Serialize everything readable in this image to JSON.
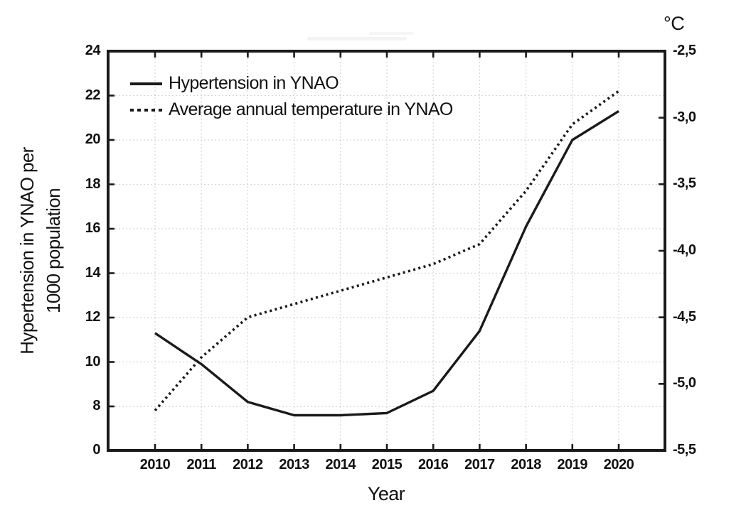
{
  "chart_data": {
    "type": "line",
    "x": [
      2010,
      2011,
      2012,
      2013,
      2014,
      2015,
      2016,
      2017,
      2018,
      2019,
      2020
    ],
    "x_tick_labels": [
      "2010",
      "2011",
      "2012",
      "2013",
      "2014",
      "2015",
      "2016",
      "2017",
      "2018",
      "2019",
      "2020"
    ],
    "x_label": "Year",
    "series": [
      {
        "name": "Hypertension in YNAO",
        "axis": "left",
        "line_style": "solid",
        "values": [
          11.3,
          9.9,
          8.2,
          7.6,
          7.6,
          7.7,
          8.7,
          11.4,
          16.1,
          20.0,
          21.3
        ]
      },
      {
        "name": "Average annual temperature in YNAO",
        "axis": "right",
        "line_style": "dotted",
        "values": [
          -5.2,
          -4.8,
          -4.5,
          -4.4,
          -4.3,
          -4.2,
          -4.1,
          -3.95,
          -3.55,
          -3.05,
          -2.8
        ]
      }
    ],
    "left_axis": {
      "title_lines": [
        "Hypertension in YNAO per",
        "1000 population"
      ],
      "tick_labels": [
        "24",
        "22",
        "20",
        "18",
        "16",
        "14",
        "12",
        "10",
        "8",
        "0"
      ],
      "tick_values": [
        24,
        22,
        20,
        18,
        16,
        14,
        12,
        10,
        8,
        0
      ],
      "note": "bottom segment between 0 and 8 is compressed (axis break)"
    },
    "right_axis": {
      "title": "°C",
      "tick_labels": [
        "-2,5",
        "-3,0",
        "-3,5",
        "-4,0",
        "-4,5",
        "-5,0",
        "-5,5"
      ],
      "tick_values": [
        -2.5,
        -3.0,
        -3.5,
        -4.0,
        -4.5,
        -5.0,
        -5.5
      ],
      "max": -2.5,
      "min": -5.5
    },
    "grid": true,
    "legend_position": "top-left-inside",
    "colors": {
      "line": "#1a1a1a",
      "grid": "#d6d6d6",
      "background": "#ffffff"
    }
  }
}
